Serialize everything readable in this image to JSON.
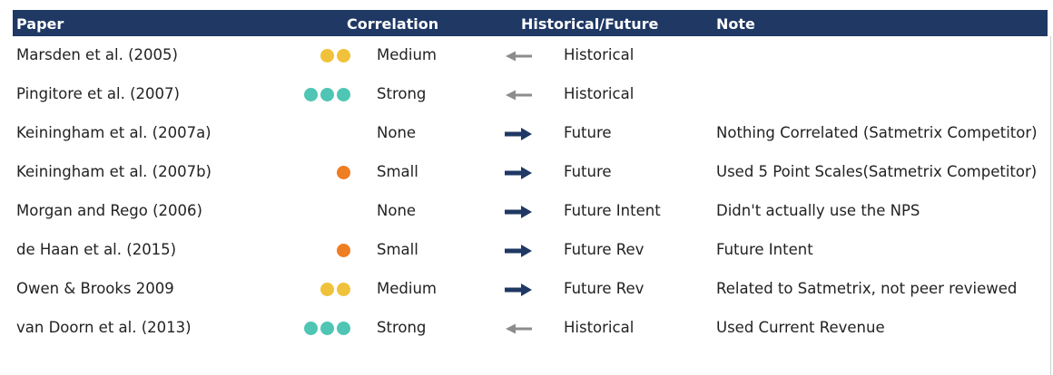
{
  "header": {
    "paper": "Paper",
    "correlation": "Correlation",
    "historical_future": "Historical/Future",
    "note": "Note"
  },
  "colors": {
    "header_bg": "#1f3864",
    "dot_medium": "#f0c23b",
    "dot_strong": "#4fc5b4",
    "dot_small": "#ef7d22",
    "arrow_future": "#1f3864",
    "arrow_historical": "#8c8c8c"
  },
  "rows": [
    {
      "paper": "Marsden et al. (2005)",
      "dots": 2,
      "dot_color": "#f0c23b",
      "strength": "Medium",
      "direction": "left",
      "tense": "Historical",
      "note": ""
    },
    {
      "paper": "Pingitore et al. (2007)",
      "dots": 3,
      "dot_color": "#4fc5b4",
      "strength": "Strong",
      "direction": "left",
      "tense": "Historical",
      "note": ""
    },
    {
      "paper": "Keiningham et al. (2007a)",
      "dots": 0,
      "dot_color": "",
      "strength": "None",
      "direction": "right",
      "tense": "Future",
      "note": "Nothing Correlated (Satmetrix Competitor)"
    },
    {
      "paper": "Keiningham et al. (2007b)",
      "dots": 1,
      "dot_color": "#ef7d22",
      "strength": "Small",
      "direction": "right",
      "tense": "Future",
      "note": "Used 5 Point Scales(Satmetrix Competitor)"
    },
    {
      "paper": "Morgan and Rego (2006)",
      "dots": 0,
      "dot_color": "",
      "strength": "None",
      "direction": "right",
      "tense": "Future Intent",
      "note": "Didn't actually use the NPS"
    },
    {
      "paper": "de Haan et al. (2015)",
      "dots": 1,
      "dot_color": "#ef7d22",
      "strength": "Small",
      "direction": "right",
      "tense": "Future Rev",
      "note": "Future Intent"
    },
    {
      "paper": "Owen & Brooks 2009",
      "dots": 2,
      "dot_color": "#f0c23b",
      "strength": "Medium",
      "direction": "right",
      "tense": "Future Rev",
      "note": "Related to Satmetrix, not peer reviewed"
    },
    {
      "paper": "van Doorn et al. (2013)",
      "dots": 3,
      "dot_color": "#4fc5b4",
      "strength": "Strong",
      "direction": "left",
      "tense": "Historical",
      "note": "Used Current Revenue"
    }
  ]
}
